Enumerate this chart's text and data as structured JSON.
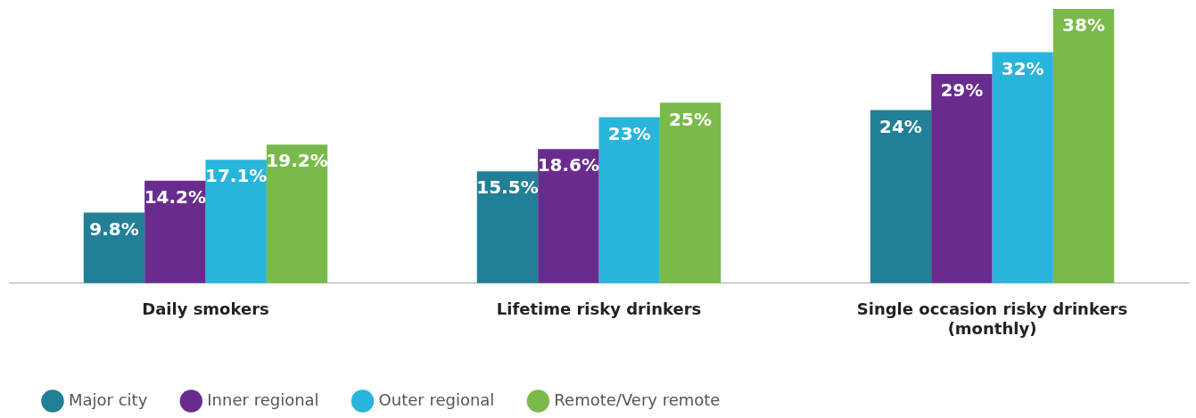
{
  "chart_data": {
    "type": "bar",
    "categories": [
      "Daily smokers",
      "Lifetime risky drinkers",
      "Single occasion risky drinkers (monthly)"
    ],
    "series": [
      {
        "name": "Major city",
        "color": "#217f96",
        "values": [
          9.8,
          15.5,
          24
        ],
        "value_labels": [
          "9.8%",
          "15.5%",
          "24%"
        ]
      },
      {
        "name": "Inner regional",
        "color": "#692c8e",
        "values": [
          14.2,
          18.6,
          29
        ],
        "value_labels": [
          "14.2%",
          "18.6%",
          "29%"
        ]
      },
      {
        "name": "Outer regional",
        "color": "#29b4dc",
        "values": [
          17.1,
          23,
          32
        ],
        "value_labels": [
          "17.1%",
          "23%",
          "32%"
        ]
      },
      {
        "name": "Remote/Very remote",
        "color": "#7aba4a",
        "values": [
          19.2,
          25,
          38
        ],
        "value_labels": [
          "19.2%",
          "25%",
          "38%"
        ]
      }
    ],
    "ylim": [
      0,
      38
    ],
    "tick_labels": "x",
    "grid": false,
    "legend": "bottom left"
  }
}
